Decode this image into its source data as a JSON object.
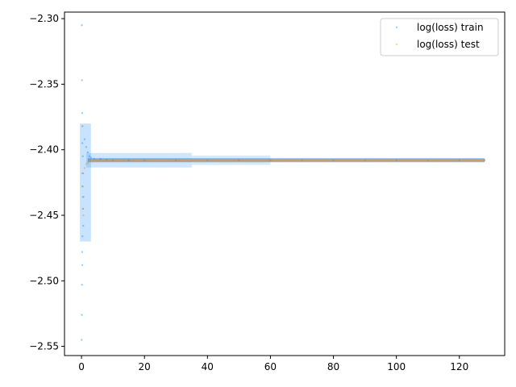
{
  "chart_data": {
    "type": "scatter",
    "title": "",
    "xlabel": "",
    "ylabel": "",
    "xlim": [
      -5.4,
      134.4
    ],
    "ylim": [
      -2.557,
      -2.295
    ],
    "x_ticks": [
      0,
      20,
      40,
      60,
      80,
      100,
      120
    ],
    "y_ticks": [
      -2.55,
      -2.5,
      -2.45,
      -2.4,
      -2.35,
      -2.3
    ],
    "x_tick_labels": [
      "0",
      "20",
      "40",
      "60",
      "80",
      "100",
      "120"
    ],
    "y_tick_labels": [
      "−2.55",
      "−2.50",
      "−2.45",
      "−2.40",
      "−2.35",
      "−2.30"
    ],
    "grid": false,
    "legend_position": "top-right",
    "series": [
      {
        "name": "log(loss) train",
        "color": "#1f8fff",
        "points": [
          [
            0.1,
            -2.305
          ],
          [
            0.15,
            -2.347
          ],
          [
            0.2,
            -2.372
          ],
          [
            0.3,
            -2.382
          ],
          [
            0.25,
            -2.395
          ],
          [
            0.4,
            -2.405
          ],
          [
            0.5,
            -2.418
          ],
          [
            0.35,
            -2.428
          ],
          [
            0.6,
            -2.436
          ],
          [
            0.45,
            -2.445
          ],
          [
            0.55,
            -2.458
          ],
          [
            0.3,
            -2.466
          ],
          [
            0.2,
            -2.478
          ],
          [
            0.25,
            -2.488
          ],
          [
            0.15,
            -2.503
          ],
          [
            0.1,
            -2.526
          ],
          [
            0.05,
            -2.545
          ],
          [
            1.0,
            -2.392
          ],
          [
            1.5,
            -2.398
          ],
          [
            2.0,
            -2.402
          ],
          [
            2.5,
            -2.405
          ],
          [
            3,
            -2.406
          ],
          [
            4,
            -2.407
          ],
          [
            6,
            -2.407
          ],
          [
            8,
            -2.4075
          ],
          [
            10,
            -2.408
          ],
          [
            15,
            -2.408
          ],
          [
            20,
            -2.408
          ],
          [
            30,
            -2.408
          ],
          [
            40,
            -2.408
          ],
          [
            50,
            -2.408
          ],
          [
            60,
            -2.408
          ],
          [
            70,
            -2.408
          ],
          [
            80,
            -2.408
          ],
          [
            90,
            -2.408
          ],
          [
            100,
            -2.408
          ],
          [
            110,
            -2.408
          ],
          [
            120,
            -2.408
          ],
          [
            128,
            -2.408
          ]
        ]
      },
      {
        "name": "log(loss) test",
        "color": "#f0902a",
        "points": [
          [
            0.2,
            -2.418
          ],
          [
            0.3,
            -2.428
          ],
          [
            0.4,
            -2.436
          ],
          [
            0.5,
            -2.445
          ],
          [
            0.6,
            -2.45
          ],
          [
            1.0,
            -2.414
          ],
          [
            1.5,
            -2.411
          ],
          [
            2.0,
            -2.41
          ],
          [
            3,
            -2.409
          ],
          [
            5,
            -2.4085
          ],
          [
            8,
            -2.408
          ],
          [
            10,
            -2.408
          ],
          [
            20,
            -2.408
          ],
          [
            30,
            -2.408
          ],
          [
            40,
            -2.408
          ],
          [
            50,
            -2.408
          ],
          [
            60,
            -2.408
          ],
          [
            70,
            -2.408
          ],
          [
            80,
            -2.408
          ],
          [
            90,
            -2.408
          ],
          [
            100,
            -2.408
          ],
          [
            110,
            -2.408
          ],
          [
            120,
            -2.408
          ],
          [
            128,
            -2.408
          ]
        ]
      }
    ]
  }
}
